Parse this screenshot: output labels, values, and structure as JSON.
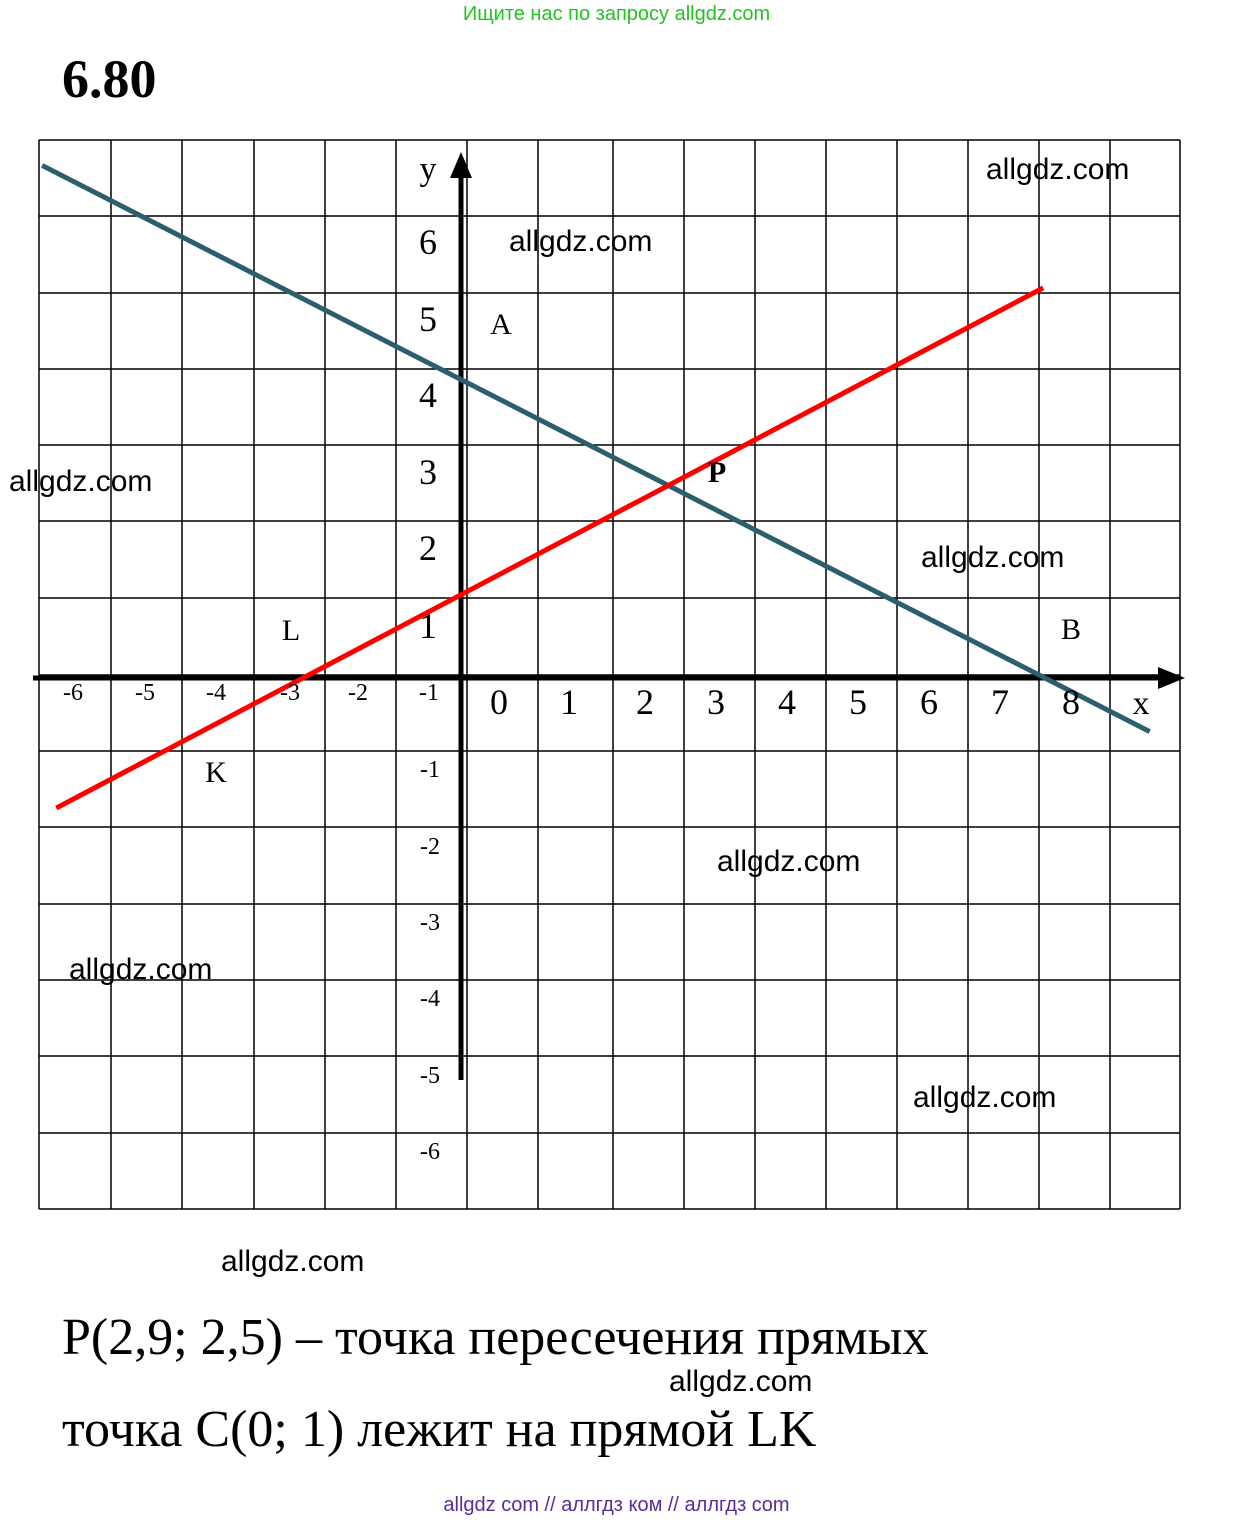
{
  "header": {
    "site_hint": "Ищите нас по запросу allgdz.com",
    "problem_number": "6.80"
  },
  "chart_data": {
    "type": "line",
    "xlabel": "x",
    "ylabel": "y",
    "grid": true,
    "x_tick_labels": [
      "-6",
      "-5",
      "-4",
      "-3",
      "-2",
      "-1",
      "0",
      "1",
      "2",
      "3",
      "4",
      "5",
      "6",
      "7",
      "8"
    ],
    "y_tick_labels_pos": [
      "1",
      "2",
      "3",
      "4",
      "5",
      "6"
    ],
    "y_tick_labels_neg": [
      "-1",
      "-2",
      "-3",
      "-4",
      "-5",
      "-6"
    ],
    "series": [
      {
        "points": [
          [
            -5.9,
            6.7
          ],
          [
            9.7,
            -0.7
          ]
        ],
        "color": "#2b5f6e",
        "through_labels": [
          "A",
          "B"
        ]
      },
      {
        "points": [
          [
            -5.7,
            -1.7
          ],
          [
            8.2,
            5.1
          ]
        ],
        "color": "#ff0000",
        "through_labels": [
          "K",
          "L"
        ]
      }
    ],
    "point_labels": [
      "A",
      "B",
      "K",
      "L",
      "P"
    ]
  },
  "answer": {
    "line1": "P(2,9; 2,5) – точка пересечения прямых",
    "line2": "точка C(0; 1) лежит на прямой LK"
  },
  "watermarks": [
    "allgdz.com",
    "allgdz.com",
    "allgdz.com",
    "allgdz.com",
    "allgdz.com",
    "allgdz.com",
    "allgdz.com",
    "allgdz.com",
    "allgdz.com"
  ],
  "footer": "allgdz com  //  аллгдз ком  //  аллгдз com"
}
